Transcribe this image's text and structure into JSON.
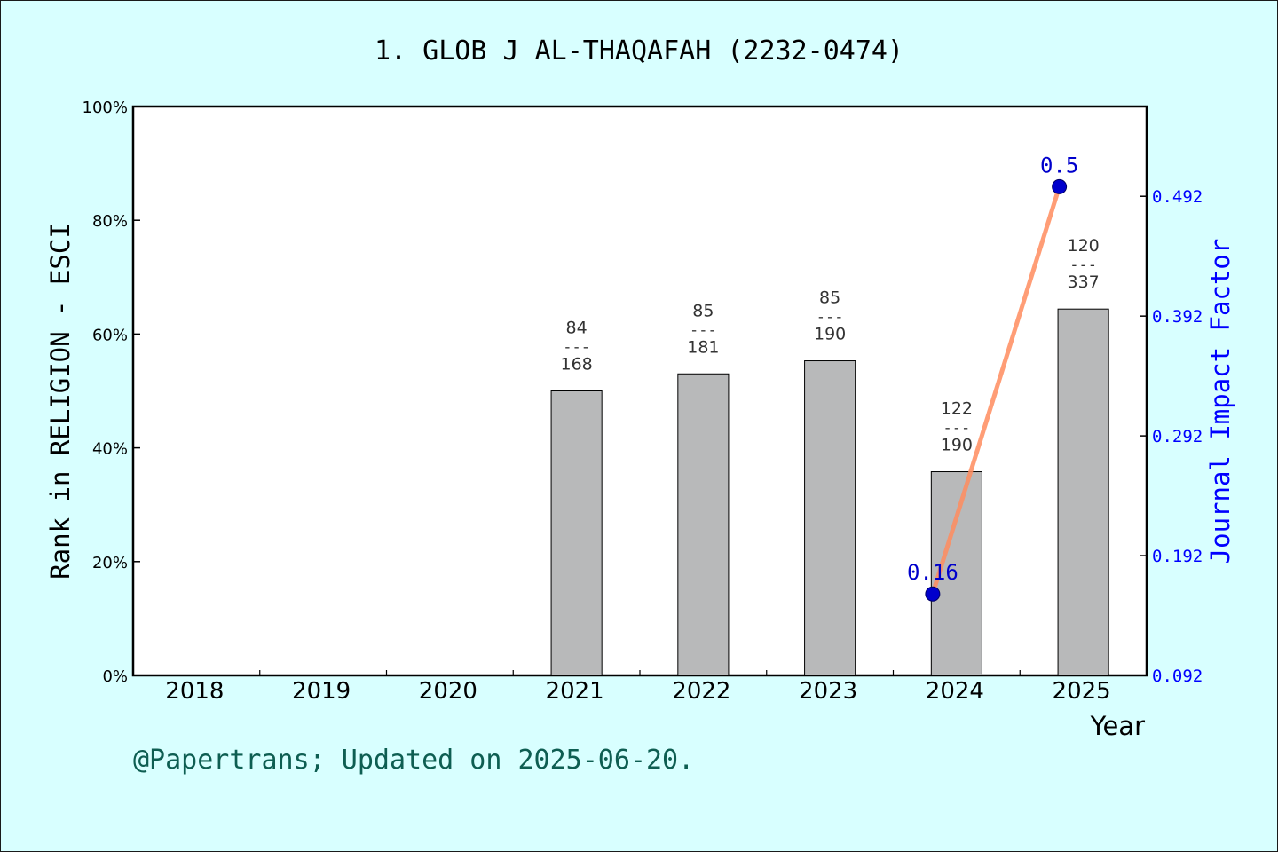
{
  "chart_data": {
    "type": "bar",
    "title": "1. GLOB J AL-THAQAFAH (2232-0474)",
    "xlabel": "Year",
    "ylabel": "Rank in RELIGION - ESCI",
    "y2label": "Journal Impact Factor",
    "footer": "@Papertrans; Updated on 2025-06-20.",
    "categories": [
      "2018",
      "2019",
      "2020",
      "2021",
      "2022",
      "2023",
      "2024",
      "2025"
    ],
    "ylim": [
      0,
      100
    ],
    "yticks": [
      "0%",
      "20%",
      "40%",
      "60%",
      "80%",
      "100%"
    ],
    "y2lim": [
      0.092,
      0.567
    ],
    "y2ticks": [
      "0.092",
      "0.192",
      "0.292",
      "0.392",
      "0.492"
    ],
    "grid": false,
    "bars": [
      {
        "year": "2018",
        "value": null,
        "rank": "",
        "total": ""
      },
      {
        "year": "2019",
        "value": null,
        "rank": "",
        "total": ""
      },
      {
        "year": "2020",
        "value": null,
        "rank": "",
        "total": ""
      },
      {
        "year": "2021",
        "value": 50.0,
        "rank": "84",
        "total": "168"
      },
      {
        "year": "2022",
        "value": 53.0,
        "rank": "85",
        "total": "181"
      },
      {
        "year": "2023",
        "value": 55.3,
        "rank": "85",
        "total": "190"
      },
      {
        "year": "2024",
        "value": 35.8,
        "rank": "122",
        "total": "190"
      },
      {
        "year": "2025",
        "value": 64.4,
        "rank": "120",
        "total": "337"
      }
    ],
    "rank_separator": "---",
    "impact_factor": [
      {
        "year": "2024",
        "value": 0.16,
        "label": "0.16"
      },
      {
        "year": "2025",
        "value": 0.5,
        "label": "0.5"
      }
    ],
    "colors": {
      "background": "#d8ffff",
      "plot_area": "#ffffff",
      "bar_fill": "#b8b9ba",
      "line": "#ff8c5e",
      "marker": "#0000cc",
      "y2_axis": "#0000ff",
      "footer": "#0e5e52"
    }
  }
}
